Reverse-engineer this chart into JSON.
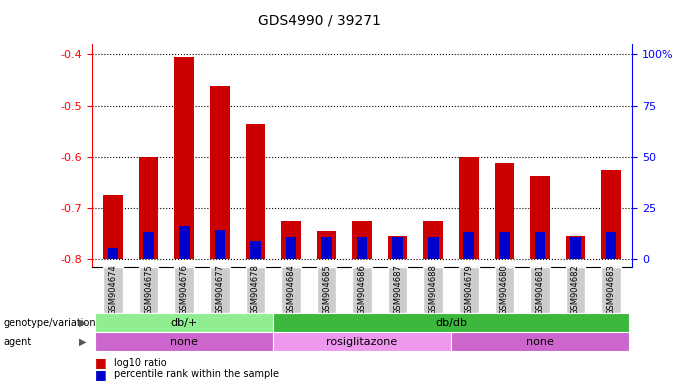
{
  "title": "GDS4990 / 39271",
  "samples": [
    "GSM904674",
    "GSM904675",
    "GSM904676",
    "GSM904677",
    "GSM904678",
    "GSM904684",
    "GSM904685",
    "GSM904686",
    "GSM904687",
    "GSM904688",
    "GSM904679",
    "GSM904680",
    "GSM904681",
    "GSM904682",
    "GSM904683"
  ],
  "log10_ratio": [
    -0.675,
    -0.6,
    -0.405,
    -0.462,
    -0.535,
    -0.726,
    -0.745,
    -0.726,
    -0.755,
    -0.726,
    -0.6,
    -0.613,
    -0.638,
    -0.755,
    -0.625
  ],
  "percentile_rank_pct": [
    5,
    12,
    15,
    13,
    8,
    10,
    10,
    10,
    10,
    10,
    12,
    12,
    12,
    10,
    12
  ],
  "bar_bottom": -0.8,
  "ylim_min": -0.815,
  "ylim_max": -0.38,
  "yticks_left": [
    -0.8,
    -0.7,
    -0.6,
    -0.5,
    -0.4
  ],
  "yticks_right_labels": [
    "0",
    "25",
    "50",
    "75",
    "100%"
  ],
  "genotype_groups": [
    {
      "label": "db/+",
      "start": 0,
      "end": 5,
      "color": "#90EE90"
    },
    {
      "label": "db/db",
      "start": 5,
      "end": 15,
      "color": "#3CB83C"
    }
  ],
  "agent_groups": [
    {
      "label": "none",
      "start": 0,
      "end": 5,
      "color": "#CC66CC"
    },
    {
      "label": "rosiglitazone",
      "start": 5,
      "end": 10,
      "color": "#EE99EE"
    },
    {
      "label": "none",
      "start": 10,
      "end": 15,
      "color": "#CC66CC"
    }
  ],
  "red_color": "#CC0000",
  "blue_color": "#0000CC",
  "bar_width": 0.55,
  "blue_bar_width": 0.3
}
